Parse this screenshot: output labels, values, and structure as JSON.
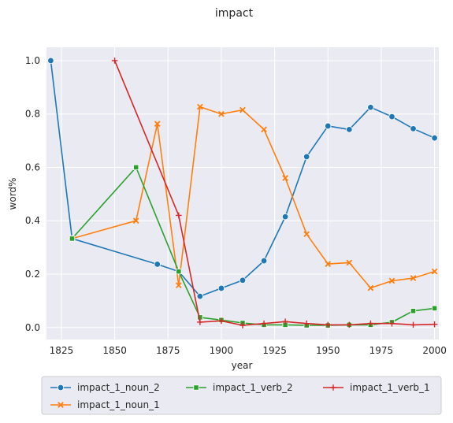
{
  "chart_data": {
    "type": "line",
    "title": "impact",
    "xlabel": "year",
    "ylabel": "word%",
    "xlim": [
      1818,
      2002
    ],
    "ylim": [
      -0.045,
      1.05
    ],
    "xticks": [
      "1825",
      "1850",
      "1875",
      "1900",
      "1925",
      "1950",
      "1975",
      "2000"
    ],
    "yticks": [
      "0.0",
      "0.2",
      "0.4",
      "0.6",
      "0.8",
      "1.0"
    ],
    "grid": true,
    "legend_position": "bottom",
    "series": [
      {
        "name": "impact_1_noun_2",
        "color": "#1f77b4",
        "marker": "circle",
        "points": [
          [
            1820,
            1.0
          ],
          [
            1830,
            0.333
          ],
          [
            1870,
            0.237
          ],
          [
            1880,
            0.21
          ],
          [
            1890,
            0.117
          ],
          [
            1900,
            0.147
          ],
          [
            1910,
            0.177
          ],
          [
            1920,
            0.25
          ],
          [
            1930,
            0.415
          ],
          [
            1940,
            0.64
          ],
          [
            1950,
            0.755
          ],
          [
            1960,
            0.742
          ],
          [
            1970,
            0.825
          ],
          [
            1980,
            0.79
          ],
          [
            1990,
            0.745
          ],
          [
            2000,
            0.71
          ]
        ]
      },
      {
        "name": "impact_1_noun_1",
        "color": "#ff7f0e",
        "marker": "x",
        "points": [
          [
            1830,
            0.333
          ],
          [
            1860,
            0.4
          ],
          [
            1870,
            0.763
          ],
          [
            1880,
            0.158
          ],
          [
            1890,
            0.827
          ],
          [
            1900,
            0.8
          ],
          [
            1910,
            0.815
          ],
          [
            1920,
            0.742
          ],
          [
            1930,
            0.56
          ],
          [
            1940,
            0.35
          ],
          [
            1950,
            0.238
          ],
          [
            1960,
            0.243
          ],
          [
            1970,
            0.148
          ],
          [
            1980,
            0.175
          ],
          [
            1990,
            0.185
          ],
          [
            2000,
            0.21
          ]
        ]
      },
      {
        "name": "impact_1_verb_2",
        "color": "#2ca02c",
        "marker": "square",
        "points": [
          [
            1830,
            0.333
          ],
          [
            1860,
            0.6
          ],
          [
            1880,
            0.21
          ],
          [
            1890,
            0.038
          ],
          [
            1900,
            0.028
          ],
          [
            1910,
            0.017
          ],
          [
            1920,
            0.01
          ],
          [
            1930,
            0.01
          ],
          [
            1940,
            0.008
          ],
          [
            1950,
            0.008
          ],
          [
            1960,
            0.01
          ],
          [
            1970,
            0.01
          ],
          [
            1980,
            0.02
          ],
          [
            1990,
            0.062
          ],
          [
            2000,
            0.072
          ]
        ]
      },
      {
        "name": "impact_1_verb_1",
        "color": "#d62728",
        "marker": "plus",
        "points": [
          [
            1850,
            1.0
          ],
          [
            1880,
            0.42
          ],
          [
            1890,
            0.02
          ],
          [
            1900,
            0.025
          ],
          [
            1910,
            0.008
          ],
          [
            1920,
            0.015
          ],
          [
            1930,
            0.022
          ],
          [
            1940,
            0.015
          ],
          [
            1950,
            0.01
          ],
          [
            1960,
            0.01
          ],
          [
            1970,
            0.015
          ],
          [
            1980,
            0.015
          ],
          [
            1990,
            0.01
          ],
          [
            2000,
            0.012
          ]
        ]
      }
    ]
  }
}
